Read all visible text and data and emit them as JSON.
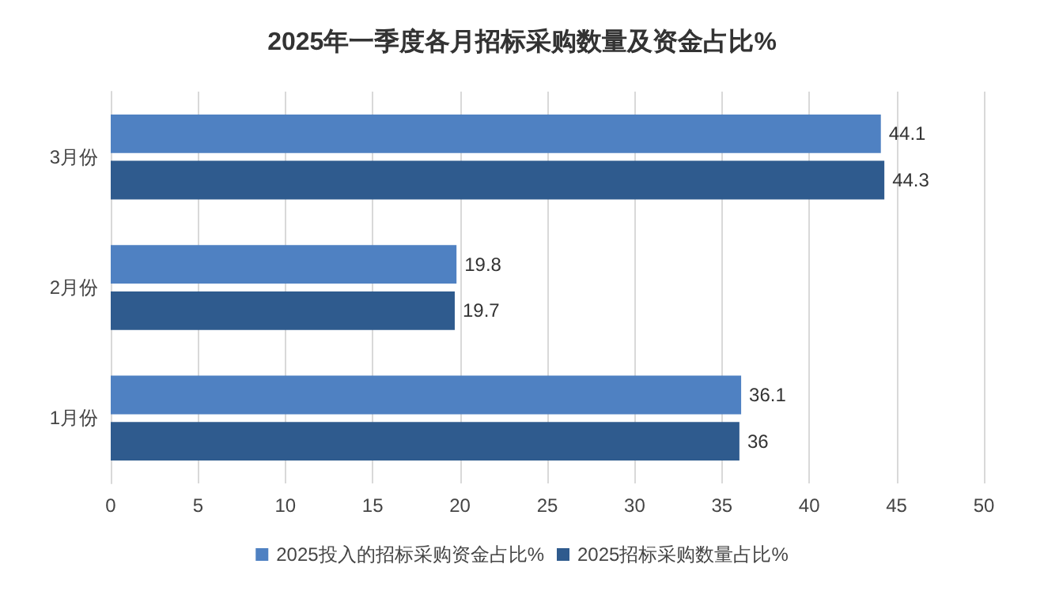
{
  "chart_data": {
    "type": "bar",
    "orientation": "horizontal",
    "title": "2025年一季度各月招标采购数量及资金占比%",
    "categories": [
      "3月份",
      "2月份",
      "1月份"
    ],
    "series": [
      {
        "name": "2025投入的招标采购资金占比%",
        "color": "#4f81c2",
        "values": [
          44.1,
          19.8,
          36.1
        ]
      },
      {
        "name": "2025招标采购数量占比%",
        "color": "#2f5b8e",
        "values": [
          44.3,
          19.7,
          36
        ]
      }
    ],
    "xlim": [
      0,
      50
    ],
    "xticks": [
      0,
      5,
      10,
      15,
      20,
      25,
      30,
      35,
      40,
      45,
      50
    ],
    "grid": "x",
    "legend": "bottom",
    "data_labels": true
  }
}
